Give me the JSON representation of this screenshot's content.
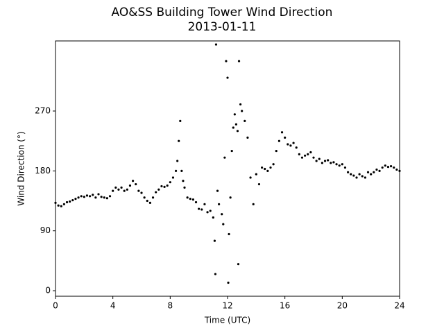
{
  "chart_data": {
    "type": "scatter",
    "title": "AO&SS Building Tower Wind Direction",
    "subtitle": "2013-01-11",
    "x_label": "Time (UTC)",
    "y_label": "Wind Direction (°)",
    "color": "#000000",
    "xlim": [
      0,
      24
    ],
    "xticks": [
      0,
      4,
      8,
      12,
      16,
      20,
      24
    ],
    "ylim": [
      -8.3,
      375.3
    ],
    "yticks": [
      0,
      90,
      180,
      270
    ],
    "grid": false,
    "x": [
      0,
      0.2,
      0.4,
      0.6,
      0.8,
      1.0,
      1.2,
      1.4,
      1.6,
      1.8,
      2.0,
      2.2,
      2.4,
      2.6,
      2.8,
      3.0,
      3.2,
      3.4,
      3.6,
      3.8,
      4.0,
      4.2,
      4.4,
      4.6,
      4.8,
      5.0,
      5.2,
      5.4,
      5.6,
      5.8,
      6.0,
      6.2,
      6.4,
      6.6,
      6.8,
      7.0,
      7.2,
      7.4,
      7.6,
      7.8,
      8.0,
      8.2,
      8.4,
      8.5,
      8.6,
      8.7,
      8.8,
      8.9,
      9.0,
      9.2,
      9.4,
      9.6,
      9.8,
      10.0,
      10.2,
      10.4,
      10.6,
      10.8,
      11.0,
      11.1,
      11.15,
      11.2,
      11.3,
      11.4,
      11.6,
      11.7,
      11.8,
      11.9,
      12.0,
      12.05,
      12.1,
      12.2,
      12.3,
      12.4,
      12.5,
      12.6,
      12.7,
      12.75,
      12.8,
      12.9,
      13.0,
      13.2,
      13.4,
      13.6,
      13.8,
      14.0,
      14.2,
      14.4,
      14.6,
      14.8,
      15.0,
      15.2,
      15.4,
      15.6,
      15.8,
      16.0,
      16.2,
      16.4,
      16.6,
      16.8,
      17.0,
      17.2,
      17.4,
      17.6,
      17.8,
      18.0,
      18.2,
      18.4,
      18.6,
      18.8,
      19.0,
      19.2,
      19.4,
      19.6,
      19.8,
      20.0,
      20.2,
      20.4,
      20.6,
      20.8,
      21.0,
      21.2,
      21.4,
      21.6,
      21.8,
      22.0,
      22.2,
      22.4,
      22.6,
      22.8,
      23.0,
      23.2,
      23.4,
      23.6,
      23.8,
      24.0
    ],
    "values": [
      132,
      128,
      127,
      130,
      133,
      134,
      136,
      138,
      140,
      142,
      141,
      143,
      142,
      144,
      140,
      145,
      141,
      140,
      139,
      142,
      150,
      155,
      152,
      155,
      150,
      152,
      158,
      165,
      160,
      150,
      147,
      140,
      135,
      132,
      140,
      148,
      152,
      157,
      156,
      158,
      163,
      170,
      180,
      195,
      225,
      255,
      180,
      165,
      155,
      140,
      138,
      137,
      133,
      123,
      122,
      130,
      118,
      120,
      110,
      75,
      25,
      370,
      150,
      130,
      115,
      100,
      200,
      345,
      320,
      12,
      85,
      140,
      210,
      245,
      265,
      250,
      240,
      40,
      345,
      280,
      270,
      255,
      230,
      170,
      130,
      175,
      160,
      185,
      183,
      180,
      185,
      190,
      210,
      225,
      238,
      230,
      220,
      218,
      222,
      215,
      205,
      200,
      203,
      205,
      208,
      200,
      195,
      198,
      192,
      195,
      196,
      192,
      193,
      190,
      188,
      190,
      185,
      178,
      175,
      173,
      170,
      175,
      172,
      170,
      178,
      175,
      178,
      182,
      180,
      185,
      188,
      186,
      187,
      185,
      182,
      180
    ]
  }
}
